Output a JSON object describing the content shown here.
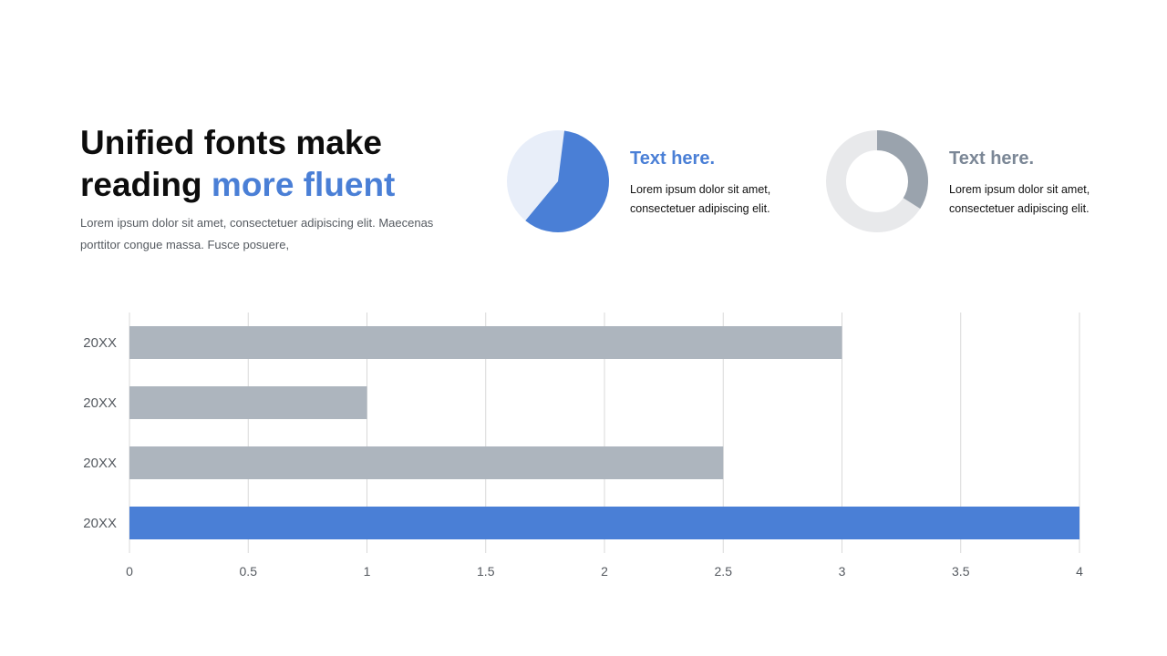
{
  "header": {
    "title_line1": "Unified fonts make",
    "title_line2_plain": "reading ",
    "title_line2_accent": "more fluent",
    "subtitle": "Lorem ipsum dolor sit amet, consectetuer adipiscing elit. Maecenas porttitor congue massa. Fusce posuere,"
  },
  "kpis": [
    {
      "heading": "Text here.",
      "text_line1": "Lorem ipsum dolor sit amet,",
      "text_line2": "consectetuer adipiscing elit.",
      "heading_color": "#4a7fd6",
      "chart_type": "pie",
      "fraction": 0.59,
      "fill_color": "#4a7fd6",
      "rest_color": "#e8eef9"
    },
    {
      "heading": "Text here.",
      "text_line1": "Lorem ipsum dolor sit amet,",
      "text_line2": "consectetuer adipiscing elit.",
      "heading_color": "#7b8796",
      "chart_type": "donut",
      "fraction": 0.34,
      "fill_color": "#9aa3ad",
      "rest_color": "#e8e9eb"
    }
  ],
  "chart_data": {
    "type": "bar",
    "orientation": "horizontal",
    "categories": [
      "20XX",
      "20XX",
      "20XX",
      "20XX"
    ],
    "values": [
      3,
      1,
      2.5,
      4
    ],
    "bar_colors": [
      "#adb5be",
      "#adb5be",
      "#adb5be",
      "#4a7fd6"
    ],
    "xlim": [
      0,
      4
    ],
    "xticks": [
      0,
      0.5,
      1,
      1.5,
      2,
      2.5,
      3,
      3.5,
      4
    ],
    "xtick_labels": [
      "0",
      "0.5",
      "1",
      "1.5",
      "2",
      "2.5",
      "3",
      "3.5",
      "4"
    ],
    "grid": true,
    "grid_color": "#d9d9d9",
    "title": "",
    "xlabel": "",
    "ylabel": ""
  }
}
